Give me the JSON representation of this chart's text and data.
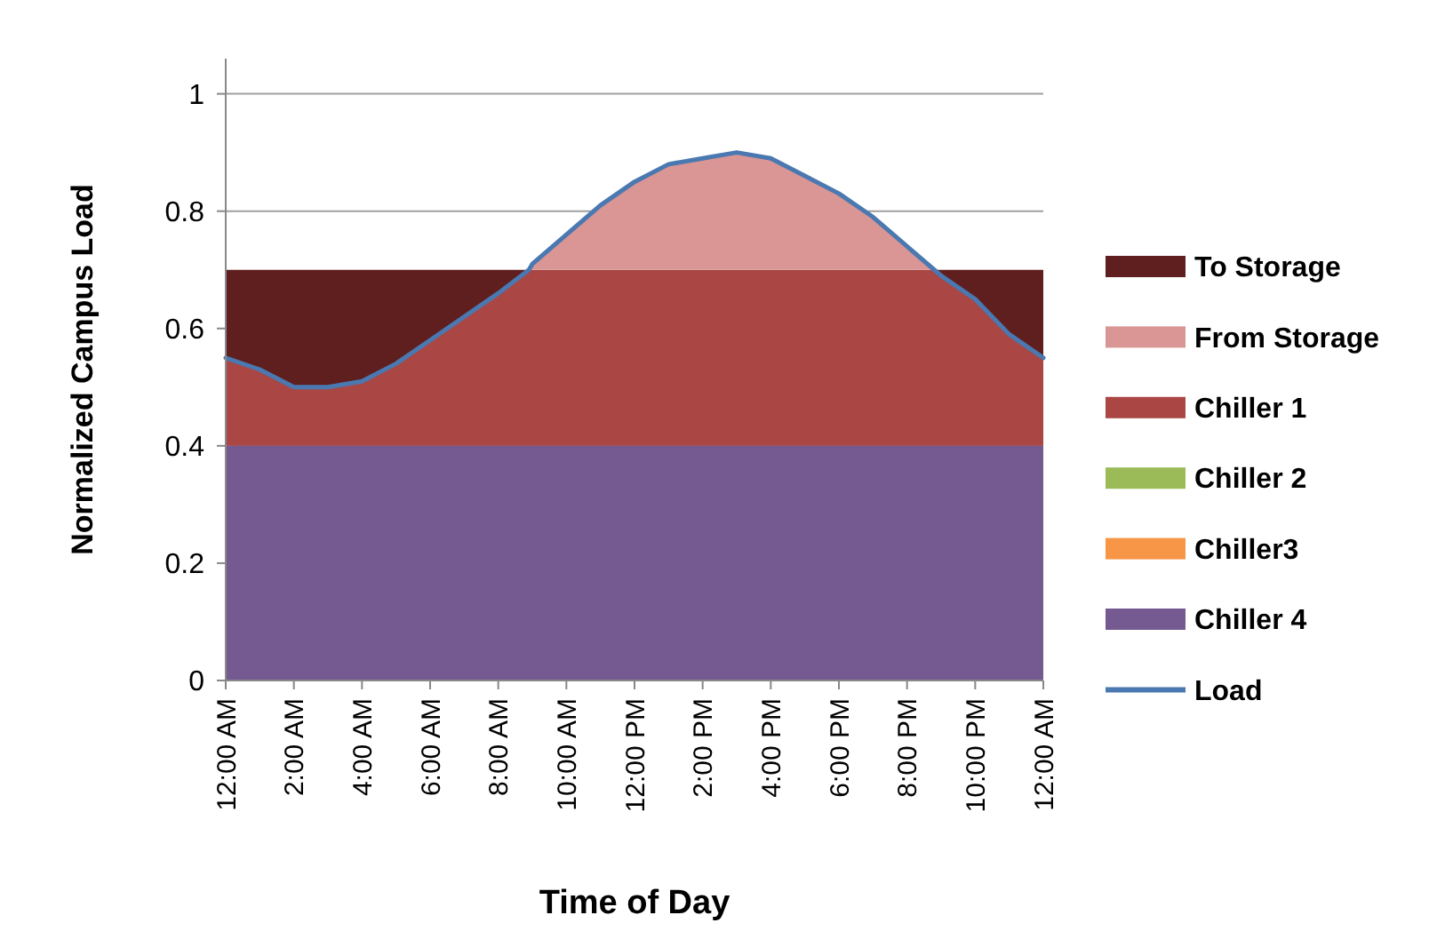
{
  "chart_data": {
    "type": "area",
    "stacked": true,
    "xlabel": "Time of Day",
    "ylabel": "Normalized Campus Load",
    "x": [
      0,
      1,
      2,
      3,
      4,
      5,
      6,
      7,
      8,
      8.9,
      9,
      10,
      11,
      12,
      13,
      14,
      15,
      16,
      17,
      18,
      19,
      20,
      20.8,
      21,
      22,
      23,
      24
    ],
    "xlim": [
      0,
      24
    ],
    "xticks": [
      {
        "value": 0,
        "label": "12:00 AM"
      },
      {
        "value": 2,
        "label": "2:00 AM"
      },
      {
        "value": 4,
        "label": "4:00 AM"
      },
      {
        "value": 6,
        "label": "6:00 AM"
      },
      {
        "value": 8,
        "label": "8:00 AM"
      },
      {
        "value": 10,
        "label": "10:00 AM"
      },
      {
        "value": 12,
        "label": "12:00 PM"
      },
      {
        "value": 14,
        "label": "2:00 PM"
      },
      {
        "value": 16,
        "label": "4:00 PM"
      },
      {
        "value": 18,
        "label": "6:00 PM"
      },
      {
        "value": 20,
        "label": "8:00 PM"
      },
      {
        "value": 22,
        "label": "10:00 PM"
      },
      {
        "value": 24,
        "label": "12:00 AM"
      }
    ],
    "ylim": [
      0,
      1.06
    ],
    "yticks": [
      0,
      0.2,
      0.4,
      0.6,
      0.8,
      1
    ],
    "grid": "y",
    "legend": "right",
    "series": [
      {
        "name": "Chiller 4",
        "color": "#745a90",
        "values": [
          0.4,
          0.4,
          0.4,
          0.4,
          0.4,
          0.4,
          0.4,
          0.4,
          0.4,
          0.4,
          0.4,
          0.4,
          0.4,
          0.4,
          0.4,
          0.4,
          0.4,
          0.4,
          0.4,
          0.4,
          0.4,
          0.4,
          0.4,
          0.4,
          0.4,
          0.4,
          0.4
        ]
      },
      {
        "name": "Chiller3",
        "color": "#f79646",
        "values": [
          null,
          null,
          null,
          null,
          null,
          null,
          null,
          null,
          null,
          null,
          null,
          null,
          null,
          null,
          null,
          null,
          null,
          null,
          null,
          null,
          null,
          null,
          null,
          null,
          null,
          null,
          null
        ]
      },
      {
        "name": "Chiller 2",
        "color": "#9bbb59",
        "values": [
          null,
          null,
          null,
          null,
          null,
          null,
          null,
          null,
          null,
          null,
          null,
          null,
          null,
          null,
          null,
          null,
          null,
          null,
          null,
          null,
          null,
          null,
          null,
          null,
          null,
          null,
          null
        ]
      },
      {
        "name": "Chiller 1",
        "color": "#aa4644",
        "values": [
          0.15,
          0.13,
          0.1,
          0.1,
          0.11,
          0.14,
          0.18,
          0.22,
          0.26,
          0.3,
          0.3,
          0.3,
          0.3,
          0.3,
          0.3,
          0.3,
          0.3,
          0.3,
          0.3,
          0.3,
          0.3,
          0.3,
          0.3,
          0.29,
          0.25,
          0.19,
          0.15
        ]
      },
      {
        "name": "From Storage",
        "color": "#d99694",
        "values": [
          null,
          null,
          null,
          null,
          null,
          null,
          null,
          null,
          null,
          0,
          0.01,
          0.06,
          0.11,
          0.15,
          0.18,
          0.19,
          0.2,
          0.19,
          0.16,
          0.13,
          0.09,
          0.04,
          0,
          null,
          null,
          null,
          null
        ]
      },
      {
        "name": "To Storage",
        "color": "#5f1f1f",
        "values": [
          0.15,
          0.17,
          0.2,
          0.2,
          0.19,
          0.16,
          0.12,
          0.08,
          0.04,
          0,
          null,
          null,
          null,
          null,
          null,
          null,
          null,
          null,
          null,
          null,
          null,
          null,
          0,
          0.01,
          0.05,
          0.11,
          0.15
        ]
      },
      {
        "name": "Load",
        "type": "line",
        "color": "#4a78b0",
        "values": [
          0.55,
          0.53,
          0.5,
          0.5,
          0.51,
          0.54,
          0.58,
          0.62,
          0.66,
          0.7,
          0.71,
          0.76,
          0.81,
          0.85,
          0.88,
          0.89,
          0.9,
          0.89,
          0.86,
          0.83,
          0.79,
          0.74,
          0.7,
          0.69,
          0.65,
          0.59,
          0.55
        ]
      }
    ]
  }
}
